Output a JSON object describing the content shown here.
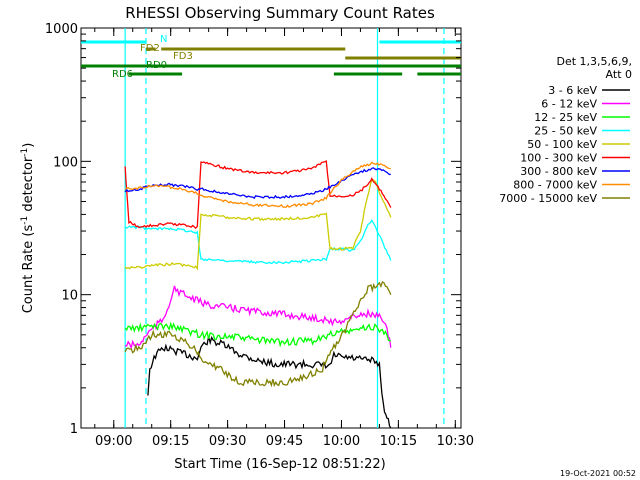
{
  "chart_data": {
    "type": "line",
    "title": "RHESSI Observing Summary Count Rates",
    "xlabel": "Start Time (16-Sep-12 08:51:22)",
    "ylabel": "Count Rate (s⁻¹ detector⁻¹)",
    "ylabel_main": "Count Rate (s",
    "ylabel_sup1": "-1",
    "ylabel_mid": " detector",
    "ylabel_sup2": "-1",
    "ylabel_end": ")",
    "y_scale": "log",
    "ylim": [
      1,
      1000
    ],
    "xlim": [
      "08:51:22",
      "10:31:30"
    ],
    "x_ticks": [
      "09:00",
      "09:15",
      "09:30",
      "09:45",
      "10:00",
      "10:15",
      "10:30"
    ],
    "y_ticks": [
      "1",
      "10",
      "100",
      "1000"
    ],
    "legend_title": [
      "Det 1,3,5,6,9,",
      "Att 0"
    ],
    "legend_position": "right",
    "series": [
      {
        "name": "3 - 6 keV",
        "color": "#000000",
        "points": [
          [
            "08:51:22",
            null
          ],
          [
            "09:03",
            null
          ],
          [
            "09:07",
            null
          ],
          [
            "09:08",
            null
          ],
          [
            "09:09",
            1.8
          ],
          [
            "09:09:30",
            2.8
          ],
          [
            "09:11",
            3.5
          ],
          [
            "09:13",
            4.0
          ],
          [
            "09:16",
            3.8
          ],
          [
            "09:20",
            3.5
          ],
          [
            "09:22",
            3.3
          ],
          [
            "09:23",
            4.0
          ],
          [
            "09:25",
            4.6
          ],
          [
            "09:29",
            4.2
          ],
          [
            "09:33",
            3.6
          ],
          [
            "09:38",
            3.2
          ],
          [
            "09:43",
            3.0
          ],
          [
            "09:48",
            3.0
          ],
          [
            "09:52",
            3.0
          ],
          [
            "09:57",
            2.9
          ],
          [
            "09:58",
            3.5
          ],
          [
            "10:00",
            3.4
          ],
          [
            "10:04",
            3.3
          ],
          [
            "10:08",
            3.2
          ],
          [
            "10:10",
            3.0
          ],
          [
            "10:11",
            1.5
          ],
          [
            "10:12",
            1.2
          ],
          [
            "10:13",
            1.0
          ]
        ]
      },
      {
        "name": "6 - 12 keV",
        "color": "#ff00ff",
        "points": [
          [
            "09:03",
            4.2
          ],
          [
            "09:07",
            4.2
          ],
          [
            "09:08",
            4.8
          ],
          [
            "09:10",
            5.5
          ],
          [
            "09:13",
            6.5
          ],
          [
            "09:16",
            11.0
          ],
          [
            "09:20",
            9.5
          ],
          [
            "09:22",
            9.0
          ],
          [
            "09:24",
            8.5
          ],
          [
            "09:30",
            8.0
          ],
          [
            "09:37",
            7.5
          ],
          [
            "09:43",
            7.2
          ],
          [
            "09:50",
            6.8
          ],
          [
            "09:56",
            6.5
          ],
          [
            "09:58",
            6.2
          ],
          [
            "10:01",
            6.5
          ],
          [
            "10:04",
            7.0
          ],
          [
            "10:07",
            7.2
          ],
          [
            "10:10",
            6.8
          ],
          [
            "10:12",
            5.5
          ],
          [
            "10:13",
            4.0
          ]
        ]
      },
      {
        "name": "12 - 25 keV",
        "color": "#00ff00",
        "points": [
          [
            "09:03",
            5.6
          ],
          [
            "09:07",
            5.6
          ],
          [
            "09:10",
            5.8
          ],
          [
            "09:15",
            5.8
          ],
          [
            "09:18",
            5.5
          ],
          [
            "09:21",
            5.2
          ],
          [
            "09:23",
            5.0
          ],
          [
            "09:27",
            4.9
          ],
          [
            "09:32",
            4.8
          ],
          [
            "09:40",
            4.5
          ],
          [
            "09:45",
            4.4
          ],
          [
            "09:52",
            4.5
          ],
          [
            "09:56",
            4.8
          ],
          [
            "09:58",
            5.2
          ],
          [
            "10:02",
            5.3
          ],
          [
            "10:05",
            5.5
          ],
          [
            "10:08",
            5.8
          ],
          [
            "10:10",
            5.5
          ],
          [
            "10:12",
            5.0
          ],
          [
            "10:13",
            4.5
          ]
        ]
      },
      {
        "name": "25 - 50 keV",
        "color": "#00ffff",
        "points": [
          [
            "09:03",
            32.0
          ],
          [
            "09:07",
            32.0
          ],
          [
            "09:10",
            31.0
          ],
          [
            "09:15",
            31.5
          ],
          [
            "09:20",
            30.0
          ],
          [
            "09:22",
            29.0
          ],
          [
            "09:23",
            18.5
          ],
          [
            "09:30",
            18.0
          ],
          [
            "09:37",
            17.5
          ],
          [
            "09:45",
            17.5
          ],
          [
            "09:52",
            18.0
          ],
          [
            "09:56",
            18.5
          ],
          [
            "09:57",
            22.0
          ],
          [
            "10:00",
            22.0
          ],
          [
            "10:03",
            21.5
          ],
          [
            "10:05",
            25.0
          ],
          [
            "10:07",
            34.0
          ],
          [
            "10:08",
            36.0
          ],
          [
            "10:09",
            32.0
          ],
          [
            "10:11",
            24.0
          ],
          [
            "10:13",
            18.0
          ]
        ]
      },
      {
        "name": "50 - 100 keV",
        "color": "#cccc00",
        "points": [
          [
            "09:03",
            16.0
          ],
          [
            "09:07",
            16.0
          ],
          [
            "09:10",
            16.5
          ],
          [
            "09:15",
            17.0
          ],
          [
            "09:20",
            16.5
          ],
          [
            "09:22",
            16.0
          ],
          [
            "09:23",
            40.0
          ],
          [
            "09:30",
            38.0
          ],
          [
            "09:37",
            37.0
          ],
          [
            "09:45",
            37.0
          ],
          [
            "09:52",
            38.0
          ],
          [
            "09:56",
            40.0
          ],
          [
            "09:57",
            22.0
          ],
          [
            "10:00",
            22.0
          ],
          [
            "10:03",
            22.5
          ],
          [
            "10:05",
            30.0
          ],
          [
            "10:06",
            42.0
          ],
          [
            "10:08",
            75.0
          ],
          [
            "10:09",
            70.0
          ],
          [
            "10:11",
            50.0
          ],
          [
            "10:13",
            38.0
          ]
        ]
      },
      {
        "name": "100 - 300 keV",
        "color": "#ff0000",
        "points": [
          [
            "09:03",
            90.0
          ],
          [
            "09:04",
            35.0
          ],
          [
            "09:07",
            32.0
          ],
          [
            "09:10",
            33.0
          ],
          [
            "09:15",
            34.0
          ],
          [
            "09:20",
            33.0
          ],
          [
            "09:22",
            32.0
          ],
          [
            "09:23",
            100.0
          ],
          [
            "09:30",
            88.0
          ],
          [
            "09:37",
            82.0
          ],
          [
            "09:45",
            82.0
          ],
          [
            "09:52",
            88.0
          ],
          [
            "09:56",
            100.0
          ],
          [
            "09:57",
            55.0
          ],
          [
            "10:00",
            55.0
          ],
          [
            "10:03",
            56.0
          ],
          [
            "10:05",
            60.0
          ],
          [
            "10:07",
            68.0
          ],
          [
            "10:08",
            73.0
          ],
          [
            "10:10",
            62.0
          ],
          [
            "10:12",
            50.0
          ],
          [
            "10:13",
            45.0
          ]
        ]
      },
      {
        "name": "300 - 800 keV",
        "color": "#0000ff",
        "points": [
          [
            "09:03",
            60.0
          ],
          [
            "09:07",
            62.0
          ],
          [
            "09:10",
            66.0
          ],
          [
            "09:15",
            67.0
          ],
          [
            "09:20",
            64.0
          ],
          [
            "09:22",
            62.0
          ],
          [
            "09:23",
            62.0
          ],
          [
            "09:30",
            57.0
          ],
          [
            "09:37",
            54.0
          ],
          [
            "09:45",
            54.0
          ],
          [
            "09:52",
            57.0
          ],
          [
            "09:56",
            62.0
          ],
          [
            "09:57",
            64.0
          ],
          [
            "10:00",
            72.0
          ],
          [
            "10:04",
            82.0
          ],
          [
            "10:08",
            88.0
          ],
          [
            "10:11",
            86.0
          ],
          [
            "10:13",
            80.0
          ]
        ]
      },
      {
        "name": "800 - 7000 keV",
        "color": "#ff8c00",
        "points": [
          [
            "09:03",
            62.0
          ],
          [
            "09:07",
            63.0
          ],
          [
            "09:10",
            66.0
          ],
          [
            "09:15",
            64.0
          ],
          [
            "09:20",
            60.0
          ],
          [
            "09:22",
            58.0
          ],
          [
            "09:23",
            55.0
          ],
          [
            "09:30",
            50.0
          ],
          [
            "09:37",
            47.0
          ],
          [
            "09:45",
            46.0
          ],
          [
            "09:52",
            48.0
          ],
          [
            "09:56",
            53.0
          ],
          [
            "09:57",
            58.0
          ],
          [
            "10:00",
            72.0
          ],
          [
            "10:04",
            88.0
          ],
          [
            "10:08",
            97.0
          ],
          [
            "10:11",
            95.0
          ],
          [
            "10:13",
            88.0
          ]
        ]
      },
      {
        "name": "7000 - 15000 keV",
        "color": "#808000",
        "points": [
          [
            "09:03",
            3.8
          ],
          [
            "09:07",
            4.0
          ],
          [
            "09:10",
            5.0
          ],
          [
            "09:15",
            5.0
          ],
          [
            "09:20",
            4.2
          ],
          [
            "09:22",
            3.8
          ],
          [
            "09:23",
            3.2
          ],
          [
            "09:28",
            2.8
          ],
          [
            "09:33",
            2.2
          ],
          [
            "09:40",
            2.2
          ],
          [
            "09:45",
            2.2
          ],
          [
            "09:50",
            2.4
          ],
          [
            "09:55",
            2.8
          ],
          [
            "09:58",
            4.0
          ],
          [
            "10:01",
            5.5
          ],
          [
            "10:04",
            8.0
          ],
          [
            "10:07",
            11.0
          ],
          [
            "10:10",
            12.0
          ],
          [
            "10:12",
            11.5
          ],
          [
            "10:13",
            10.0
          ]
        ]
      }
    ],
    "top_bars": [
      {
        "label": "N",
        "color": "#00ffff",
        "y_row": 0,
        "segments": [
          [
            "08:51:22",
            "09:08:30"
          ],
          [
            "10:10",
            "10:31:30"
          ]
        ]
      },
      {
        "label": "FD2",
        "color": "#808000",
        "y_row": 1,
        "segments": [
          [
            "09:08:30",
            "09:11"
          ]
        ]
      },
      {
        "label": "FD3",
        "color": "#808000",
        "y_row": 1,
        "segments": [
          [
            "09:12:30",
            "10:01"
          ]
        ]
      },
      {
        "label": "",
        "color": "#808000",
        "y_row": 2,
        "segments": [
          [
            "10:01",
            "10:31:30"
          ]
        ]
      },
      {
        "label": "RD0",
        "color": "#008000",
        "y_row": 3,
        "segments": [
          [
            "08:51:22",
            "10:31:30"
          ]
        ]
      },
      {
        "label": "RD6",
        "color": "#008000",
        "y_row": 4,
        "segments": [
          [
            "09:04",
            "09:18"
          ],
          [
            "09:58",
            "10:16"
          ],
          [
            "10:20",
            "10:31:30"
          ]
        ]
      }
    ],
    "vlines_solid": [
      {
        "x": "09:03",
        "color": "#00ffff"
      },
      {
        "x": "10:09:30",
        "color": "#00ffff"
      }
    ],
    "vlines_dashed": [
      {
        "x": "09:08:30",
        "color": "#00ffff"
      },
      {
        "x": "10:27",
        "color": "#00ffff"
      }
    ],
    "footer": "19-Oct-2021 00:52"
  }
}
